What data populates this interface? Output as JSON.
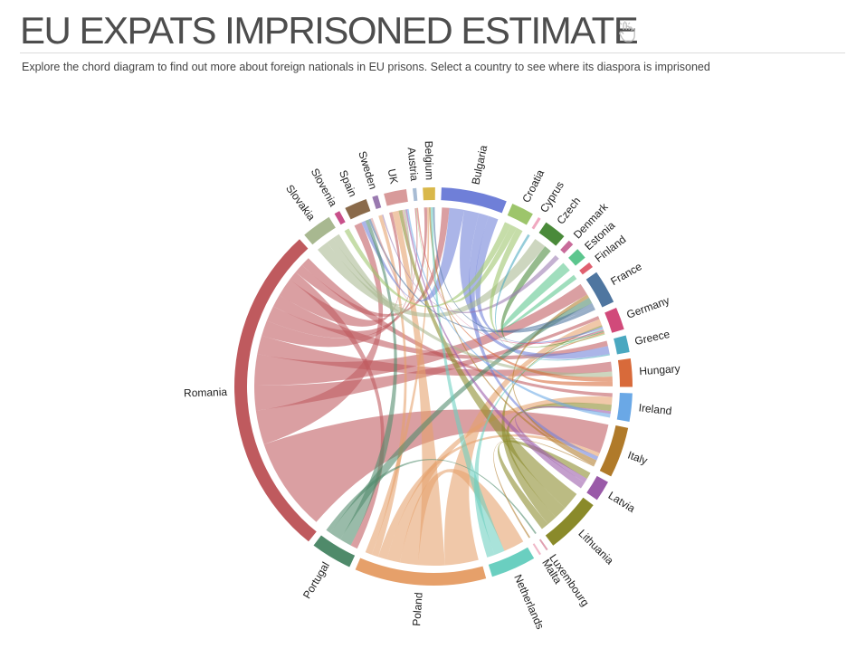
{
  "header": {
    "title": "EU EXPATS IMPRISONED ESTIMATE",
    "subtitle": "Explore the chord diagram to find out more about foreign nationals in EU prisons. Select a country to see where its diaspora is imprisoned",
    "icon": "pointer-hand-icon"
  },
  "chart_data": {
    "type": "chord",
    "title": "EU EXPATS IMPRISONED ESTIMATE",
    "order": "clockwise from top",
    "groups": [
      {
        "name": "Austria",
        "share": 0.2,
        "color": "#a8bcd4"
      },
      {
        "name": "Belgium",
        "share": 0.65,
        "color": "#d9b84a"
      },
      {
        "name": "Bulgaria",
        "share": 3.5,
        "color": "#6f7fd8"
      },
      {
        "name": "Croatia",
        "share": 1.2,
        "color": "#9dc56b"
      },
      {
        "name": "Cyprus",
        "share": 0.15,
        "color": "#f0a8c0"
      },
      {
        "name": "Czech",
        "share": 1.2,
        "color": "#4a8a3a"
      },
      {
        "name": "Denmark",
        "share": 0.3,
        "color": "#c86b9a"
      },
      {
        "name": "Estonia",
        "share": 0.6,
        "color": "#5cc68e"
      },
      {
        "name": "Finland",
        "share": 0.3,
        "color": "#e06070"
      },
      {
        "name": "France",
        "share": 1.8,
        "color": "#4f76a0"
      },
      {
        "name": "Germany",
        "share": 1.2,
        "color": "#d14a7a"
      },
      {
        "name": "Greece",
        "share": 0.9,
        "color": "#4aa8c0"
      },
      {
        "name": "Hungary",
        "share": 1.5,
        "color": "#d86a3a"
      },
      {
        "name": "Ireland",
        "share": 1.5,
        "color": "#6aa8e6"
      },
      {
        "name": "Italy",
        "share": 2.7,
        "color": "#b07a2a"
      },
      {
        "name": "Latvia",
        "share": 1.1,
        "color": "#9a5aa8"
      },
      {
        "name": "Lithuania",
        "share": 3.0,
        "color": "#8a8a2a"
      },
      {
        "name": "Luxembourg",
        "share": 0.1,
        "color": "#e0a0b0"
      },
      {
        "name": "Malta",
        "share": 0.1,
        "color": "#f0b8c8"
      },
      {
        "name": "Netherlands",
        "share": 2.4,
        "color": "#6acfc0"
      },
      {
        "name": "Poland",
        "share": 7.0,
        "color": "#e6a06a"
      },
      {
        "name": "Portugal",
        "share": 2.2,
        "color": "#4f8a6a"
      },
      {
        "name": "Romania",
        "share": 18.0,
        "color": "#bf5a5e"
      },
      {
        "name": "Slovakia",
        "share": 1.6,
        "color": "#a8b890"
      },
      {
        "name": "Slovenia",
        "share": 0.3,
        "color": "#c8508a"
      },
      {
        "name": "Spain",
        "share": 1.2,
        "color": "#8a6a4a"
      },
      {
        "name": "Sweden",
        "share": 0.3,
        "color": "#9a7ab0"
      },
      {
        "name": "UK",
        "share": 1.2,
        "color": "#d89a9a"
      }
    ],
    "flows": [
      {
        "from": "Romania",
        "to": "Italy",
        "value": 3.0
      },
      {
        "from": "Romania",
        "to": "Spain",
        "value": 1.1
      },
      {
        "from": "Romania",
        "to": "Germany",
        "value": 0.8
      },
      {
        "from": "Romania",
        "to": "France",
        "value": 1.0
      },
      {
        "from": "Romania",
        "to": "Hungary",
        "value": 0.6
      },
      {
        "from": "Romania",
        "to": "Austria",
        "value": 0.5
      },
      {
        "from": "Romania",
        "to": "Belgium",
        "value": 0.5
      },
      {
        "from": "Romania",
        "to": "Greece",
        "value": 0.4
      },
      {
        "from": "Romania",
        "to": "UK",
        "value": 0.6
      },
      {
        "from": "Romania",
        "to": "Portugal",
        "value": 0.3
      },
      {
        "from": "Romania",
        "to": "Bulgaria",
        "value": 0.3
      },
      {
        "from": "Romania",
        "to": "Ireland",
        "value": 0.3
      },
      {
        "from": "Poland",
        "to": "Germany",
        "value": 1.5
      },
      {
        "from": "Poland",
        "to": "UK",
        "value": 1.2
      },
      {
        "from": "Poland",
        "to": "Netherlands",
        "value": 0.8
      },
      {
        "from": "Poland",
        "to": "Ireland",
        "value": 0.6
      },
      {
        "from": "Poland",
        "to": "Italy",
        "value": 0.4
      },
      {
        "from": "Poland",
        "to": "Sweden",
        "value": 0.3
      },
      {
        "from": "Poland",
        "to": "Belgium",
        "value": 0.3
      },
      {
        "from": "Lithuania",
        "to": "UK",
        "value": 0.7
      },
      {
        "from": "Lithuania",
        "to": "Ireland",
        "value": 0.5
      },
      {
        "from": "Lithuania",
        "to": "Germany",
        "value": 0.4
      },
      {
        "from": "Lithuania",
        "to": "Latvia",
        "value": 0.3
      },
      {
        "from": "Bulgaria",
        "to": "Spain",
        "value": 0.6
      },
      {
        "from": "Bulgaria",
        "to": "Greece",
        "value": 0.6
      },
      {
        "from": "Bulgaria",
        "to": "Italy",
        "value": 0.4
      },
      {
        "from": "Bulgaria",
        "to": "Germany",
        "value": 0.4
      },
      {
        "from": "Italy",
        "to": "France",
        "value": 0.3
      },
      {
        "from": "Italy",
        "to": "Belgium",
        "value": 0.3
      },
      {
        "from": "Portugal",
        "to": "Spain",
        "value": 0.5
      },
      {
        "from": "Portugal",
        "to": "France",
        "value": 0.5
      },
      {
        "from": "Portugal",
        "to": "Luxembourg",
        "value": 0.2
      },
      {
        "from": "Netherlands",
        "to": "Belgium",
        "value": 0.4
      },
      {
        "from": "Netherlands",
        "to": "Germany",
        "value": 0.3
      },
      {
        "from": "Slovakia",
        "to": "Czech",
        "value": 0.5
      },
      {
        "from": "Slovakia",
        "to": "Hungary",
        "value": 0.3
      },
      {
        "from": "France",
        "to": "Spain",
        "value": 0.3
      },
      {
        "from": "France",
        "to": "Belgium",
        "value": 0.3
      },
      {
        "from": "Croatia",
        "to": "Slovenia",
        "value": 0.3
      },
      {
        "from": "Croatia",
        "to": "Austria",
        "value": 0.3
      },
      {
        "from": "Germany",
        "to": "Austria",
        "value": 0.3
      },
      {
        "from": "Hungary",
        "to": "Austria",
        "value": 0.3
      },
      {
        "from": "UK",
        "to": "Spain",
        "value": 0.3
      },
      {
        "from": "Latvia",
        "to": "Ireland",
        "value": 0.2
      },
      {
        "from": "Czech",
        "to": "Germany",
        "value": 0.3
      },
      {
        "from": "Estonia",
        "to": "Finland",
        "value": 0.3
      },
      {
        "from": "Sweden",
        "to": "Denmark",
        "value": 0.1
      },
      {
        "from": "Greece",
        "to": "Cyprus",
        "value": 0.1
      },
      {
        "from": "Italy",
        "to": "Malta",
        "value": 0.1
      },
      {
        "from": "Slovakia",
        "to": "UK",
        "value": 0.3
      },
      {
        "from": "Latvia",
        "to": "UK",
        "value": 0.3
      },
      {
        "from": "Ireland",
        "to": "UK",
        "value": 0.3
      },
      {
        "from": "Hungary",
        "to": "Germany",
        "value": 0.3
      },
      {
        "from": "Croatia",
        "to": "Germany",
        "value": 0.3
      }
    ]
  }
}
